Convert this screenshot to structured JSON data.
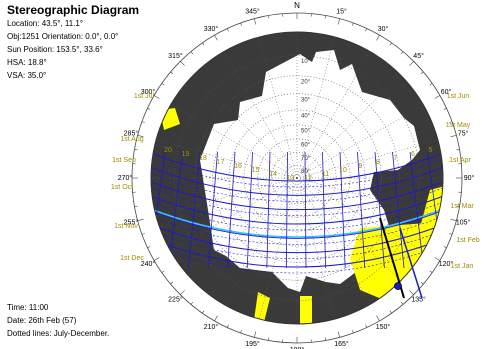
{
  "header": {
    "title": "Stereographic Diagram",
    "location": "Location: 43.5°, 11.1°",
    "object": "Obj:1251 Orientation: 0.0°, 0.0°",
    "sun_position": "Sun Position: 153.5°, 33.6°",
    "hsa": "HSA: 18.8°",
    "vsa": "VSA: 35.0°"
  },
  "footer": {
    "time": "Time: 11:00",
    "date": "Date: 26th Feb (57)",
    "note": "Dotted lines: July-December."
  },
  "compass": {
    "north": "N",
    "azimuth_labels": [
      "345°",
      "15°",
      "330°",
      "30°",
      "315°",
      "45°",
      "300°",
      "60°",
      "285°",
      "75°",
      "270°",
      "90°",
      "255°",
      "105°",
      "240°",
      "120°",
      "225°",
      "135°",
      "210°",
      "150°",
      "195°",
      "165°",
      "180°"
    ],
    "altitude_labels": [
      "80°",
      "70°",
      "60°",
      "50°",
      "40°",
      "30°",
      "20°",
      "10°"
    ]
  },
  "date_labels": {
    "left": [
      "1st Jul",
      "1st Aug",
      "1st Sep",
      "1st Oct",
      "1st Nov",
      "1st Dec"
    ],
    "right": [
      "1st Jun",
      "1st May",
      "1st Apr",
      "1st Mar",
      "1st Feb",
      "1st Jan"
    ]
  },
  "hour_labels": [
    "20",
    "19",
    "18",
    "17",
    "16",
    "15",
    "14",
    "13",
    "12",
    "11",
    "10",
    "9",
    "8",
    "7",
    "6",
    "5"
  ],
  "colors": {
    "obstruction": "#3a3a3a",
    "shading_mask": "#ffff00",
    "sun_path": "#1a1acc",
    "date_label": "#a08c00",
    "sky": "#ffffff",
    "grid": "#555555"
  }
}
